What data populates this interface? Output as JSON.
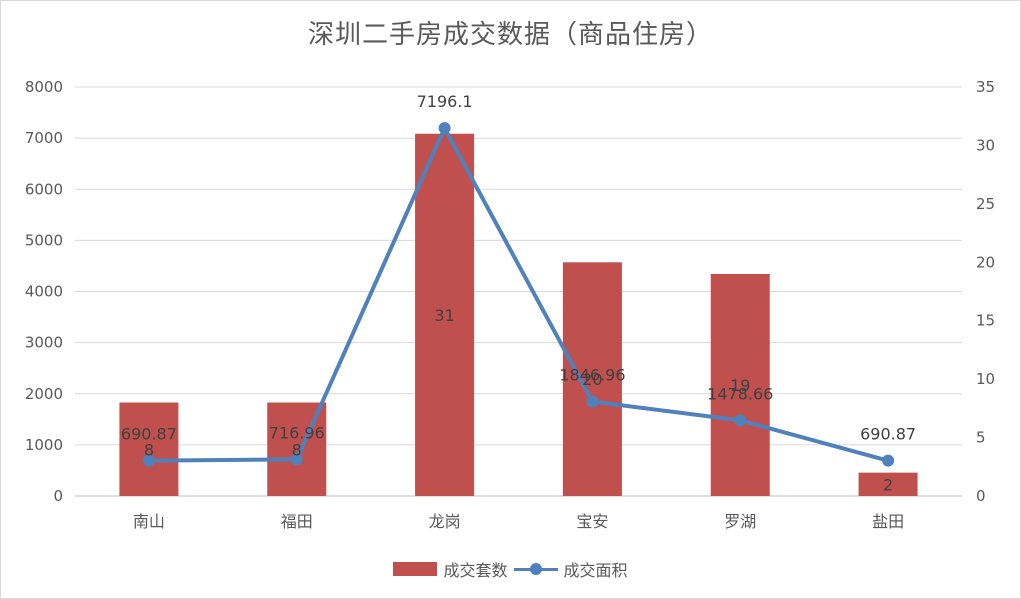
{
  "colors": {
    "bar": "#c0504d",
    "line": "#4f81bd",
    "grid": "#d9d9d9",
    "axis": "#bfbfbf"
  },
  "chart_data": {
    "type": "bar",
    "title": "深圳二手房成交数据（商品住房）",
    "categories": [
      "南山",
      "福田",
      "龙岗",
      "宝安",
      "罗湖",
      "盐田"
    ],
    "series": [
      {
        "name": "成交套数",
        "type": "bar",
        "axis": "right",
        "values": [
          8,
          8,
          31,
          20,
          19,
          2
        ]
      },
      {
        "name": "成交面积",
        "type": "line",
        "axis": "left",
        "values": [
          690.87,
          716.96,
          7196.1,
          1846.96,
          1478.66,
          690.87
        ]
      }
    ],
    "left_axis": {
      "ticks": [
        "0",
        "1000",
        "2000",
        "3000",
        "4000",
        "5000",
        "6000",
        "7000",
        "8000"
      ],
      "ylim": [
        0,
        8000
      ]
    },
    "right_axis": {
      "ticks": [
        "0",
        "5",
        "10",
        "15",
        "20",
        "25",
        "30",
        "35"
      ],
      "ylim": [
        0,
        35
      ]
    },
    "grid": true,
    "legend_position": "bottom"
  }
}
